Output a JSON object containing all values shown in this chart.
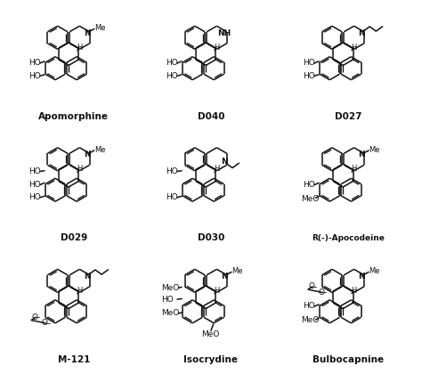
{
  "compounds": [
    {
      "label": "Apomorphine",
      "row": 0,
      "col": 0
    },
    {
      "label": "D040",
      "row": 0,
      "col": 1
    },
    {
      "label": "D027",
      "row": 0,
      "col": 2
    },
    {
      "label": "D029",
      "row": 1,
      "col": 0
    },
    {
      "label": "D030",
      "row": 1,
      "col": 1
    },
    {
      "label": "R(-)-Apocodeine",
      "row": 1,
      "col": 2
    },
    {
      "label": "M-121",
      "row": 2,
      "col": 0
    },
    {
      "label": "Isocrydine",
      "row": 2,
      "col": 1
    },
    {
      "label": "Bulbocapnine",
      "row": 2,
      "col": 2
    }
  ],
  "bg": "#ffffff",
  "lc": "#111111",
  "fig_width": 4.74,
  "fig_height": 4.2,
  "dpi": 100
}
